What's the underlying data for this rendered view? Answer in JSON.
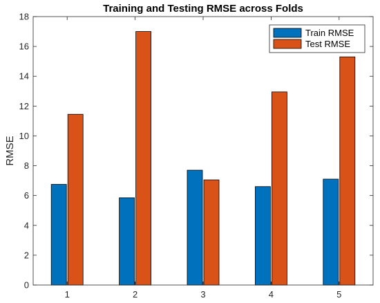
{
  "chart_data": {
    "type": "bar",
    "title": "Training and Testing RMSE across Folds",
    "xlabel": "",
    "ylabel": "RMSE",
    "categories": [
      "1",
      "2",
      "3",
      "4",
      "5"
    ],
    "series": [
      {
        "name": "Train RMSE",
        "color": "#0072BD",
        "values": [
          6.75,
          5.85,
          7.7,
          6.6,
          7.1
        ]
      },
      {
        "name": "Test RMSE",
        "color": "#D95319",
        "values": [
          11.45,
          17.0,
          7.05,
          12.95,
          15.3
        ]
      }
    ],
    "ylim": [
      0,
      18
    ],
    "yticks": [
      0,
      2,
      4,
      6,
      8,
      10,
      12,
      14,
      16,
      18
    ],
    "grid": false,
    "legend_position": "top-right"
  }
}
